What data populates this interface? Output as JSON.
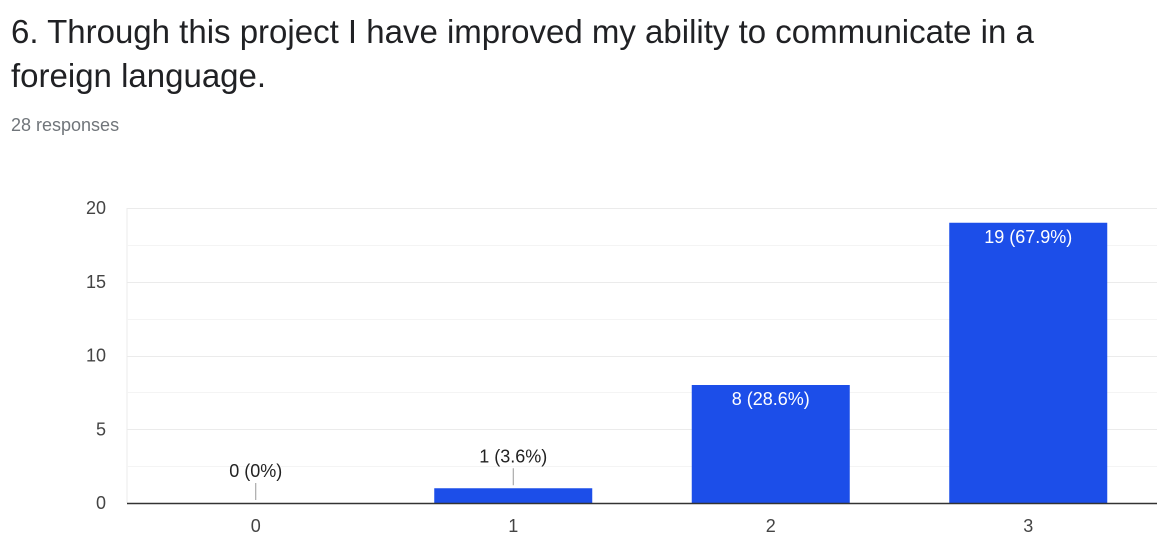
{
  "question": {
    "title": "6. Through this project I have improved my ability to communicate in a foreign language.",
    "response_count": "28 responses"
  },
  "colors": {
    "bar": "#1c4ee9",
    "grid": "#ebebeb",
    "axis": "#333333",
    "tick_text": "#444444"
  },
  "chart_data": {
    "type": "bar",
    "title": "",
    "xlabel": "",
    "ylabel": "",
    "categories": [
      "0",
      "1",
      "2",
      "3"
    ],
    "values": [
      0,
      1,
      8,
      19
    ],
    "data_labels": [
      "0 (0%)",
      "1 (3.6%)",
      "8 (28.6%)",
      "19 (67.9%)"
    ],
    "ylim": [
      0,
      20
    ],
    "yticks": [
      0,
      5,
      10,
      15,
      20
    ],
    "ytick_labels": [
      "0",
      "5",
      "10",
      "15",
      "20"
    ],
    "grid": true,
    "legend": "none"
  }
}
